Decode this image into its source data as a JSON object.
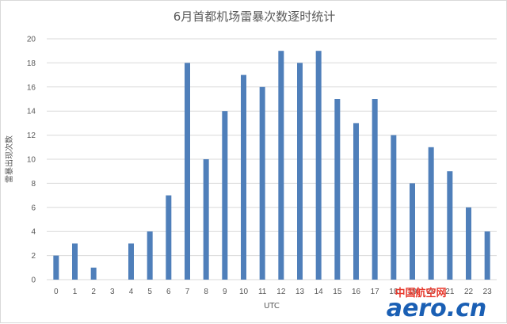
{
  "chart_data": {
    "type": "bar",
    "title": "6月首都机场雷暴次数逐时统计",
    "xlabel": "UTC",
    "ylabel": "雷暴出现次数",
    "categories": [
      "0",
      "1",
      "2",
      "3",
      "4",
      "5",
      "6",
      "7",
      "8",
      "9",
      "10",
      "11",
      "12",
      "13",
      "14",
      "15",
      "16",
      "17",
      "18",
      "19",
      "20",
      "21",
      "22",
      "23"
    ],
    "values": [
      2,
      3,
      1,
      0,
      3,
      4,
      7,
      18,
      10,
      14,
      17,
      16,
      19,
      18,
      19,
      15,
      13,
      15,
      12,
      8,
      11,
      9,
      6,
      4
    ],
    "ylim": [
      0,
      20
    ],
    "yticks": [
      0,
      2,
      4,
      6,
      8,
      10,
      12,
      14,
      16,
      18,
      20
    ],
    "grid": true,
    "bar_color": "#4f7fba",
    "grid_color": "#d9d9d9"
  },
  "watermark": {
    "cn": "中国航空网",
    "en": "aero.cn"
  }
}
